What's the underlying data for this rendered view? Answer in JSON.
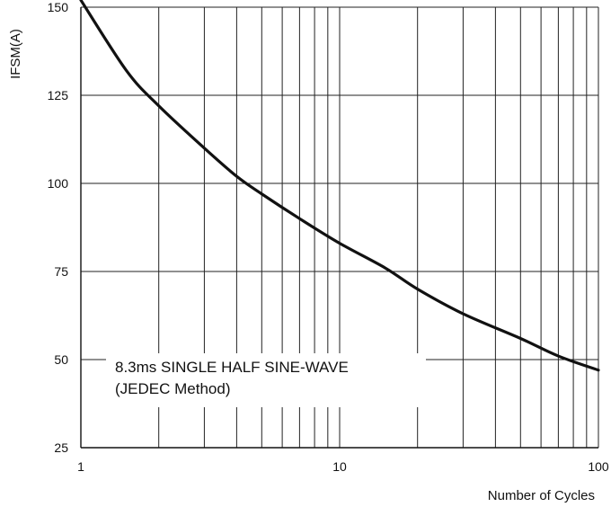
{
  "chart_data": {
    "type": "line",
    "title": "",
    "xlabel": "Number of Cycles",
    "ylabel": "IFSM(A)",
    "x_scale": "log",
    "xlim": [
      1,
      100
    ],
    "ylim": [
      25,
      150
    ],
    "x_ticks": [
      1,
      10,
      100
    ],
    "x_tick_labels": [
      "1",
      "10",
      "100"
    ],
    "y_ticks": [
      25,
      50,
      75,
      100,
      125,
      150
    ],
    "y_tick_labels": [
      "25",
      "50",
      "75",
      "100",
      "125",
      "150"
    ],
    "grid": true,
    "annotation": [
      "8.3ms SINGLE HALF SINE-WAVE",
      "(JEDEC Method)"
    ],
    "series": [
      {
        "x": [
          1,
          1.5,
          2,
          3,
          4,
          5,
          7,
          10,
          15,
          20,
          30,
          50,
          70,
          100
        ],
        "y": [
          152,
          132,
          122,
          110,
          102,
          97,
          90,
          83,
          76,
          70,
          63,
          56,
          51,
          47
        ]
      }
    ]
  }
}
